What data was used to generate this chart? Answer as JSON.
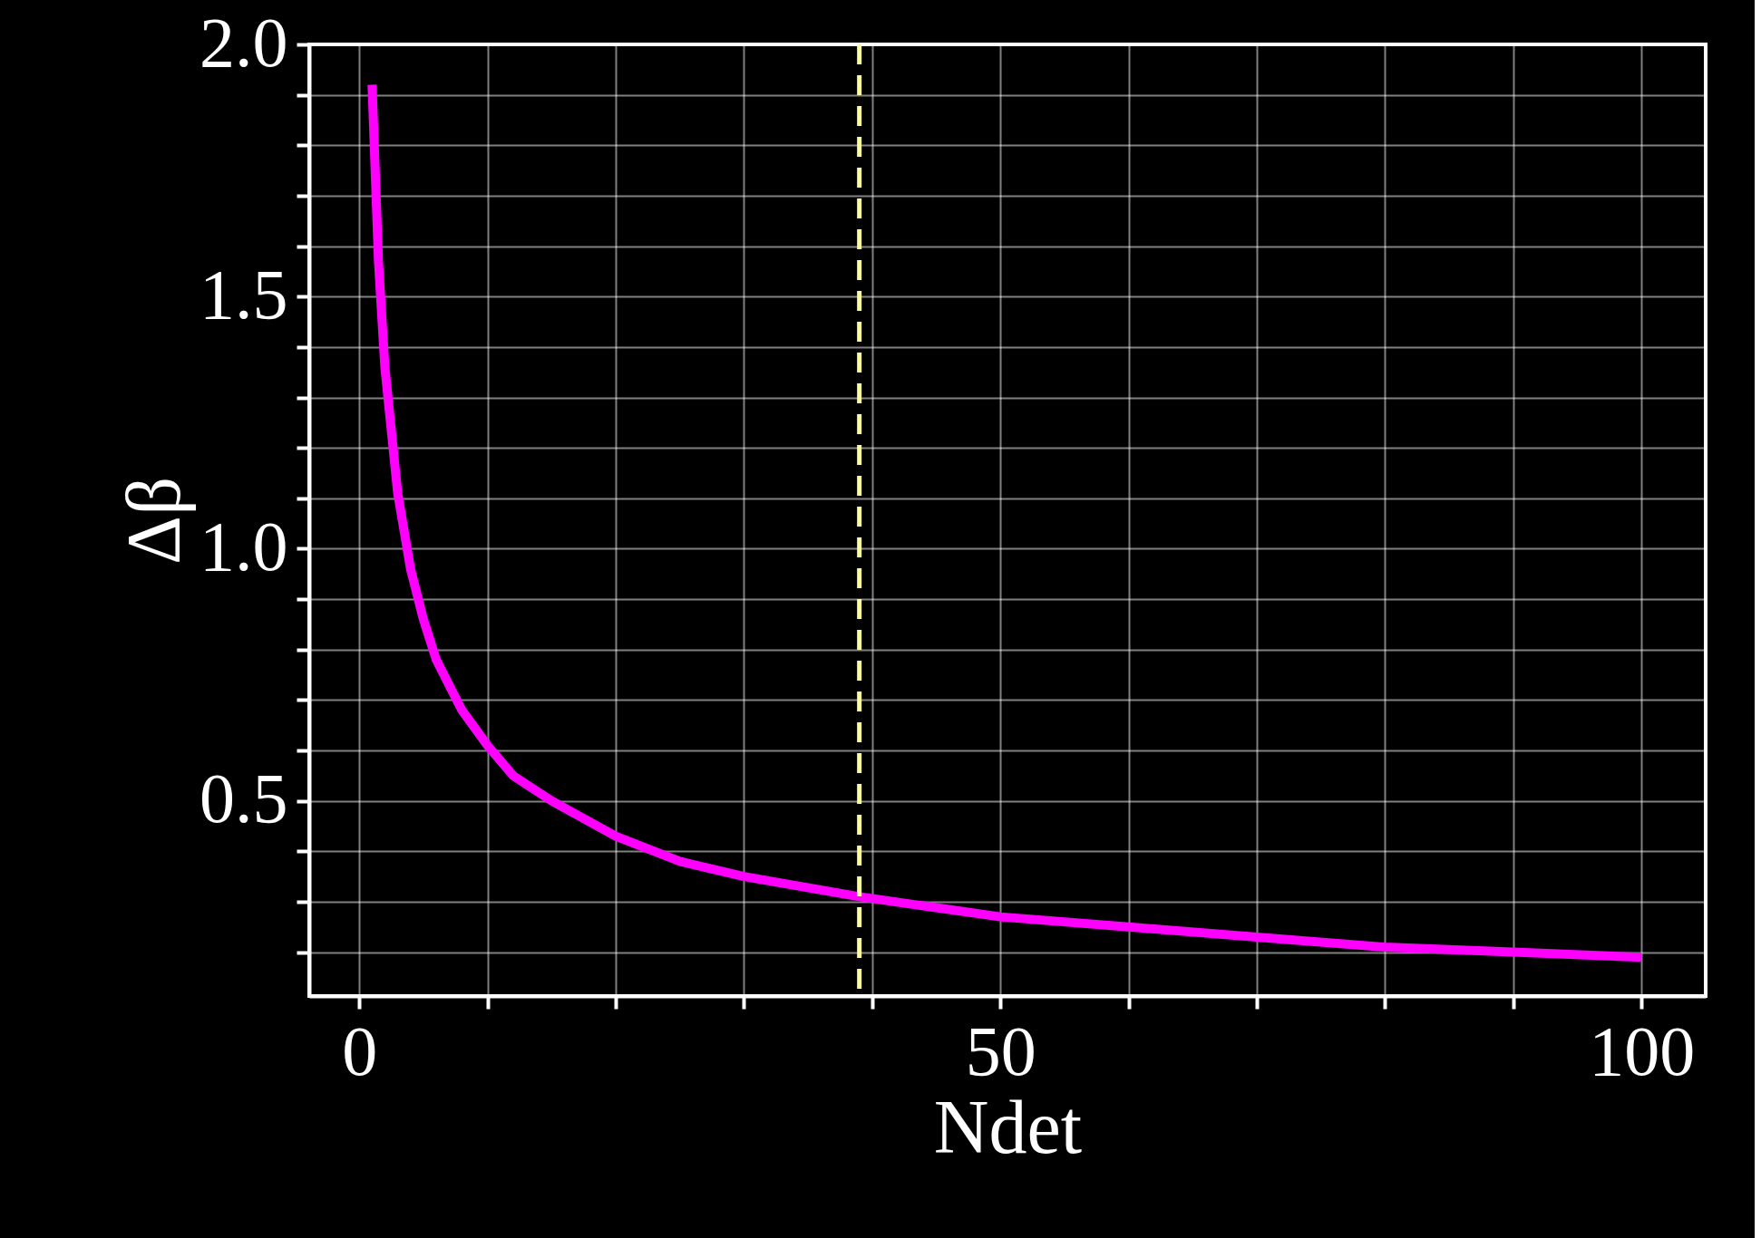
{
  "chart_data": {
    "type": "line",
    "xlabel": "Ndet",
    "ylabel": "Δβ",
    "x": [
      1,
      1.5,
      2,
      3,
      4,
      5,
      6,
      8,
      10,
      12,
      15,
      20,
      25,
      30,
      39,
      50,
      60,
      70,
      80,
      90,
      100
    ],
    "series": [
      {
        "color": "#ff00ff",
        "values": [
          1.92,
          1.57,
          1.36,
          1.11,
          0.96,
          0.86,
          0.78,
          0.68,
          0.61,
          0.55,
          0.5,
          0.43,
          0.38,
          0.35,
          0.31,
          0.27,
          0.25,
          0.23,
          0.21,
          0.2,
          0.19
        ]
      }
    ],
    "xlim": [
      -3.9,
      105
    ],
    "ylim": [
      0.113,
      2.0
    ],
    "xticks": [
      0,
      {
        "value": 10,
        "label": null
      },
      {
        "value": 20,
        "label": null
      },
      {
        "value": 30,
        "label": null
      },
      {
        "value": 40,
        "label": null
      },
      50,
      {
        "value": 60,
        "label": null
      },
      {
        "value": 70,
        "label": null
      },
      {
        "value": 80,
        "label": null
      },
      {
        "value": 90,
        "label": null
      },
      100
    ],
    "yticks": [
      {
        "value": 0.2,
        "label": null
      },
      {
        "value": 0.3,
        "label": null
      },
      {
        "value": 0.4,
        "label": null
      },
      {
        "value": 0.5,
        "label": "0.5"
      },
      {
        "value": 0.6,
        "label": null
      },
      {
        "value": 0.7,
        "label": null
      },
      {
        "value": 0.8,
        "label": null
      },
      {
        "value": 0.9,
        "label": null
      },
      {
        "value": 1.0,
        "label": "1.0"
      },
      {
        "value": 1.1,
        "label": null
      },
      {
        "value": 1.2,
        "label": null
      },
      {
        "value": 1.3,
        "label": null
      },
      {
        "value": 1.4,
        "label": null
      },
      {
        "value": 1.5,
        "label": "1.5"
      },
      {
        "value": 1.6,
        "label": null
      },
      {
        "value": 1.7,
        "label": null
      },
      {
        "value": 1.8,
        "label": null
      },
      {
        "value": 1.9,
        "label": null
      },
      {
        "value": 2.0,
        "label": "2.0"
      }
    ],
    "ref_lines": [
      {
        "axis": "x",
        "value": 39,
        "color": "#ffff99",
        "line_style": "dashed"
      }
    ],
    "grid": true,
    "marker": "none",
    "line_style": "solid"
  }
}
